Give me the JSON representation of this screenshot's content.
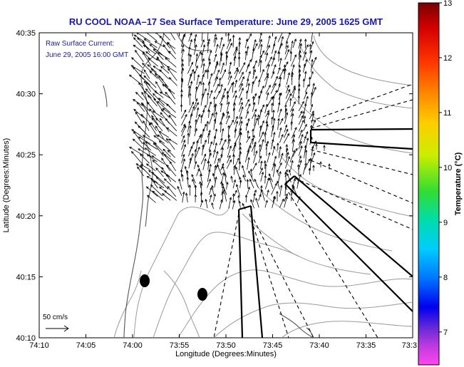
{
  "title": "RU COOL  NOAA–17  Sea Surface Temperature:  June 29, 2005 1625 GMT",
  "annotation": {
    "line1": "Raw Surface Current:",
    "line2": "June 29, 2005 16:00 GMT"
  },
  "axes": {
    "xlabel": "Longitude (Degrees:Minutes)",
    "ylabel": "Latitude (Degrees:Minutes)",
    "x_ticks": [
      "74:10",
      "74:05",
      "74:00",
      "73:55",
      "73:50",
      "73:45",
      "73:40",
      "73:35",
      "73:3"
    ],
    "y_ticks": [
      "40:35",
      "40:30",
      "40:25",
      "40:20",
      "40:15",
      "40:10"
    ]
  },
  "colorbar": {
    "label": "Temperature (°C)",
    "ticks": [
      "13",
      "12",
      "11",
      "10",
      "9",
      "8",
      "7"
    ]
  },
  "scale_label": "50 cm/s",
  "colors": {
    "title": "#1a1aa6",
    "coast": "#555555",
    "bathy": "#9a9a9a",
    "vectors": "#000000"
  }
}
